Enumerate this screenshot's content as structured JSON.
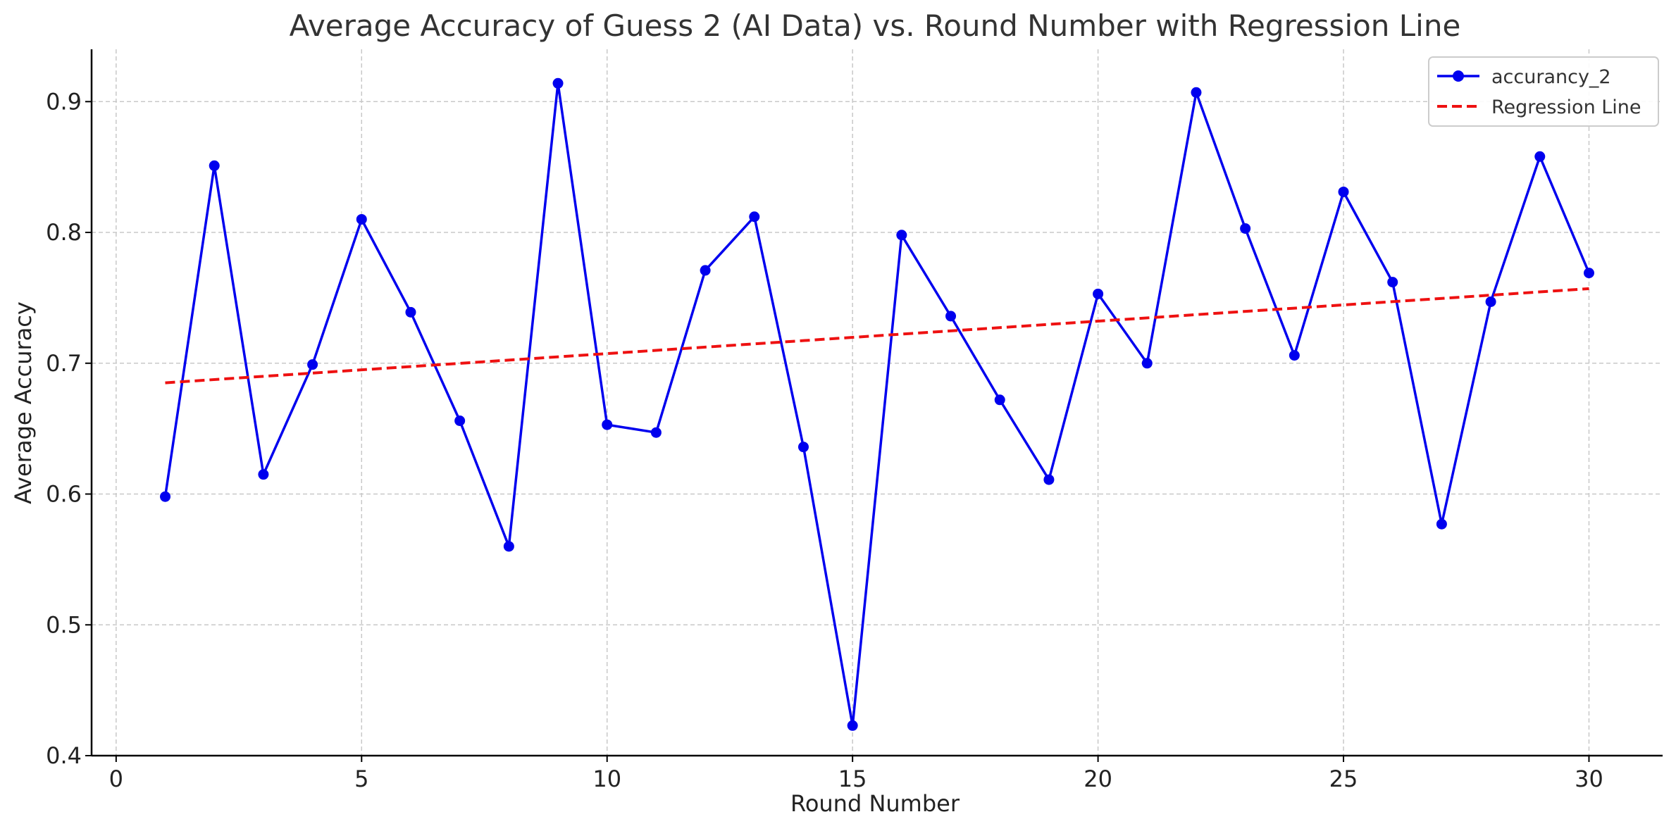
{
  "chart_data": {
    "type": "line",
    "title": "Average Accuracy of Guess 2 (AI Data) vs. Round Number with Regression Line",
    "xlabel": "Round Number",
    "ylabel": "Average Accuracy",
    "xlim": [
      -0.5,
      31.5
    ],
    "ylim": [
      0.4,
      0.94
    ],
    "x_ticks": [
      0,
      5,
      10,
      15,
      20,
      25,
      30
    ],
    "x_tick_labels": [
      "0",
      "5",
      "10",
      "15",
      "20",
      "25",
      "30"
    ],
    "y_ticks": [
      0.4,
      0.5,
      0.6,
      0.7,
      0.8,
      0.9
    ],
    "y_tick_labels": [
      "0.4",
      "0.5",
      "0.6",
      "0.7",
      "0.8",
      "0.9"
    ],
    "grid": true,
    "legend_position": "top-right",
    "x": [
      1,
      2,
      3,
      4,
      5,
      6,
      7,
      8,
      9,
      10,
      11,
      12,
      13,
      14,
      15,
      16,
      17,
      18,
      19,
      20,
      21,
      22,
      23,
      24,
      25,
      26,
      27,
      28,
      29,
      30
    ],
    "series": [
      {
        "name": "accurancy_2",
        "style": "solid-with-markers",
        "color": "#0000ee",
        "values": [
          0.598,
          0.851,
          0.615,
          0.699,
          0.81,
          0.739,
          0.656,
          0.56,
          0.914,
          0.653,
          0.647,
          0.771,
          0.812,
          0.636,
          0.423,
          0.798,
          0.736,
          0.672,
          0.611,
          0.753,
          0.7,
          0.907,
          0.803,
          0.706,
          0.831,
          0.762,
          0.577,
          0.747,
          0.858,
          0.769
        ]
      },
      {
        "name": "Regression Line",
        "style": "dashed",
        "color": "#ee1111",
        "x": [
          1,
          30
        ],
        "values": [
          0.685,
          0.757
        ]
      }
    ]
  }
}
